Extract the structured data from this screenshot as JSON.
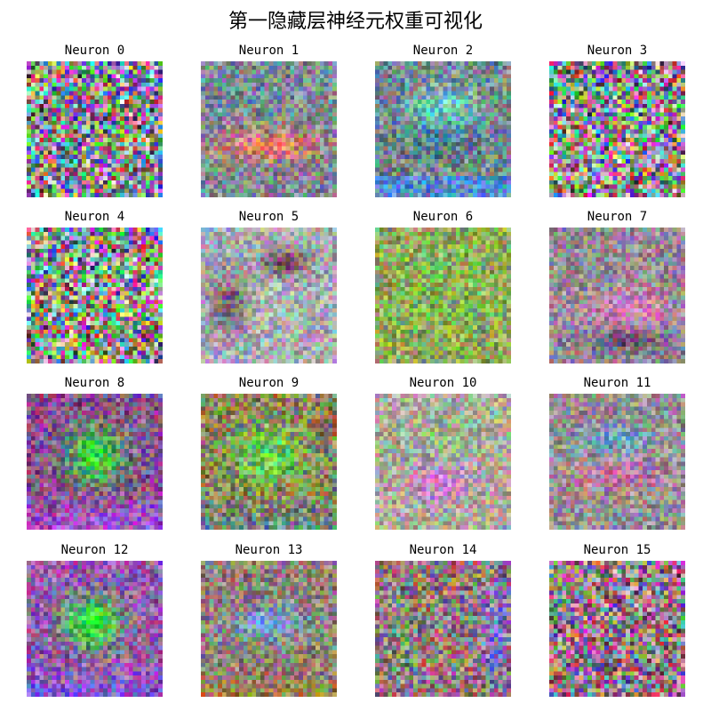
{
  "figure": {
    "title": "第一隐藏层神经元权重可视化"
  },
  "neurons": [
    {
      "label": "Neuron 0",
      "pattern": "noise"
    },
    {
      "label": "Neuron 1",
      "pattern": "warm-band"
    },
    {
      "label": "Neuron 2",
      "pattern": "cyan-blue"
    },
    {
      "label": "Neuron 3",
      "pattern": "noise"
    },
    {
      "label": "Neuron 4",
      "pattern": "noise"
    },
    {
      "label": "Neuron 5",
      "pattern": "pink-blobs"
    },
    {
      "label": "Neuron 6",
      "pattern": "olive-green"
    },
    {
      "label": "Neuron 7",
      "pattern": "pink-oval"
    },
    {
      "label": "Neuron 8",
      "pattern": "green-center-purple"
    },
    {
      "label": "Neuron 9",
      "pattern": "green-center-olive"
    },
    {
      "label": "Neuron 10",
      "pattern": "pink-pale"
    },
    {
      "label": "Neuron 11",
      "pattern": "pink-oval-cyan"
    },
    {
      "label": "Neuron 12",
      "pattern": "green-center-violet"
    },
    {
      "label": "Neuron 13",
      "pattern": "blue-oval-brown"
    },
    {
      "label": "Neuron 14",
      "pattern": "red-green-noise"
    },
    {
      "label": "Neuron 15",
      "pattern": "fine-noise"
    }
  ]
}
